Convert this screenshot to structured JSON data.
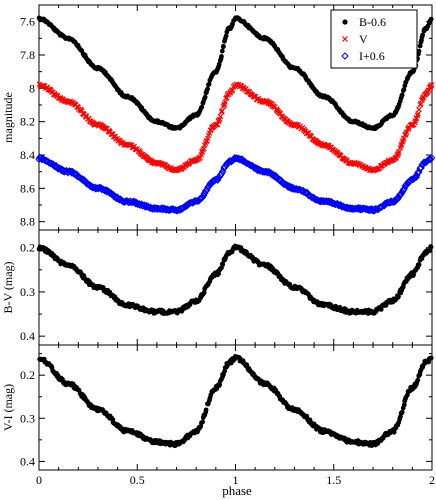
{
  "chart_data": [
    {
      "type": "scatter",
      "xlabel": "",
      "ylabel": "magnitude",
      "xlim": [
        0,
        2
      ],
      "ylim": [
        8.85,
        7.5
      ],
      "y_inverted": true,
      "xticks": [
        "0",
        "0.5",
        "1",
        "1.5",
        "2"
      ],
      "yticks": [
        "7.6",
        "7.8",
        "8",
        "8.2",
        "8.4",
        "8.6",
        "8.8"
      ],
      "legend_position": "top-right",
      "series": [
        {
          "name": "B-0.6",
          "marker": "filled-circle",
          "color": "#000000",
          "key_phases": [
            0.0,
            0.15,
            0.3,
            0.45,
            0.6,
            0.7,
            0.8,
            0.9,
            0.97,
            1.0
          ],
          "key_values": [
            7.58,
            7.7,
            7.88,
            8.05,
            8.2,
            8.24,
            8.16,
            7.9,
            7.64,
            7.58
          ]
        },
        {
          "name": "V",
          "marker": "x",
          "color": "#ff0000",
          "key_phases": [
            0.0,
            0.15,
            0.3,
            0.45,
            0.6,
            0.7,
            0.8,
            0.9,
            0.97,
            1.0
          ],
          "key_values": [
            7.98,
            8.08,
            8.22,
            8.34,
            8.45,
            8.49,
            8.43,
            8.22,
            8.03,
            7.98
          ]
        },
        {
          "name": "I+0.6",
          "marker": "open-diamond",
          "color": "#0000ff",
          "key_phases": [
            0.0,
            0.15,
            0.3,
            0.45,
            0.6,
            0.7,
            0.8,
            0.9,
            0.97,
            1.0
          ],
          "key_values": [
            8.42,
            8.5,
            8.6,
            8.68,
            8.72,
            8.73,
            8.68,
            8.55,
            8.44,
            8.42
          ]
        }
      ]
    },
    {
      "type": "scatter",
      "xlabel": "",
      "ylabel": "B-V (mag)",
      "xlim": [
        0,
        2
      ],
      "ylim": [
        0.42,
        0.16
      ],
      "y_inverted": true,
      "xticks": [
        "0",
        "0.5",
        "1",
        "1.5",
        "2"
      ],
      "yticks": [
        "0.2",
        "0.3",
        "0.4"
      ],
      "series": [
        {
          "marker": "filled-circle",
          "color": "#000000",
          "key_phases": [
            0.0,
            0.15,
            0.3,
            0.45,
            0.6,
            0.7,
            0.8,
            0.9,
            0.97,
            1.0
          ],
          "key_values": [
            0.2,
            0.24,
            0.29,
            0.33,
            0.345,
            0.345,
            0.32,
            0.26,
            0.21,
            0.2
          ]
        }
      ]
    },
    {
      "type": "scatter",
      "xlabel": "phase",
      "ylabel": "V-I (mag)",
      "xlim": [
        0,
        2
      ],
      "ylim": [
        0.42,
        0.13
      ],
      "y_inverted": true,
      "xticks": [
        "0",
        "0.5",
        "1",
        "1.5",
        "2"
      ],
      "yticks": [
        "0.2",
        "0.3",
        "0.4"
      ],
      "series": [
        {
          "marker": "filled-circle",
          "color": "#000000",
          "key_phases": [
            0.0,
            0.15,
            0.3,
            0.45,
            0.6,
            0.7,
            0.8,
            0.9,
            0.97,
            1.0
          ],
          "key_values": [
            0.16,
            0.22,
            0.28,
            0.33,
            0.355,
            0.36,
            0.33,
            0.23,
            0.17,
            0.16
          ]
        }
      ]
    }
  ]
}
